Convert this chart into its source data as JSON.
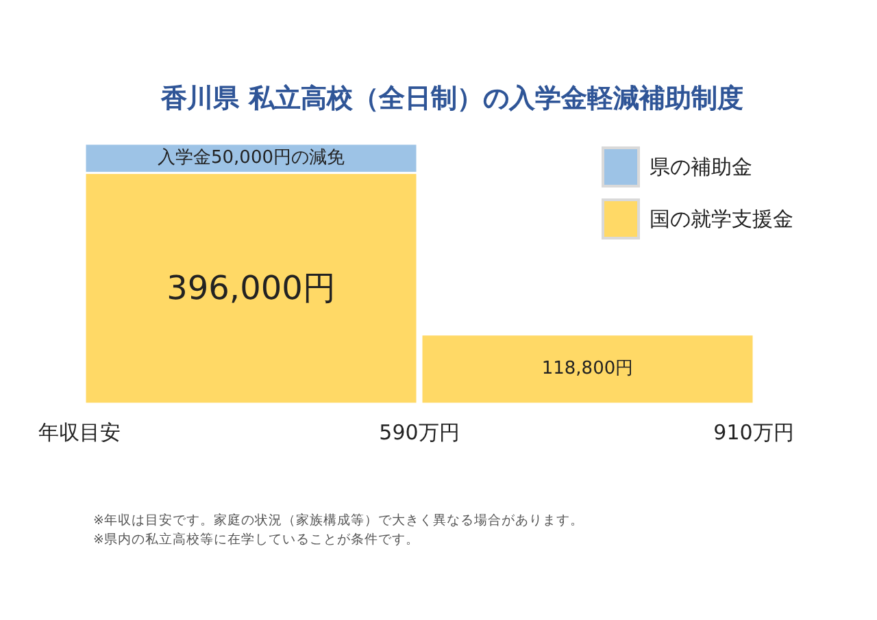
{
  "chart_data": {
    "type": "bar",
    "stacked": true,
    "title": "香川県  私立高校（全日制）の入学金軽減補助制度",
    "categories": [
      null,
      null
    ],
    "xlabel": "年収目安",
    "series": [
      {
        "name": "国の就学支援金",
        "color": "#ffd966",
        "values": [
          396000,
          118800
        ],
        "value_labels": [
          "396,000円",
          "118,800円"
        ]
      },
      {
        "name": "県の補助金",
        "color": "#9dc3e6",
        "values": [
          50000,
          null
        ],
        "value_labels": [
          "入学金50,000円の減免",
          null
        ]
      }
    ],
    "legend": "top right",
    "annotations": [
      "590万円",
      "910万円",
      "※年収は目安です。家庭の状況（家族構成等）で大きく異なる場合があります。",
      "※県内の私立高校等に在学していることが条件です。"
    ]
  }
}
